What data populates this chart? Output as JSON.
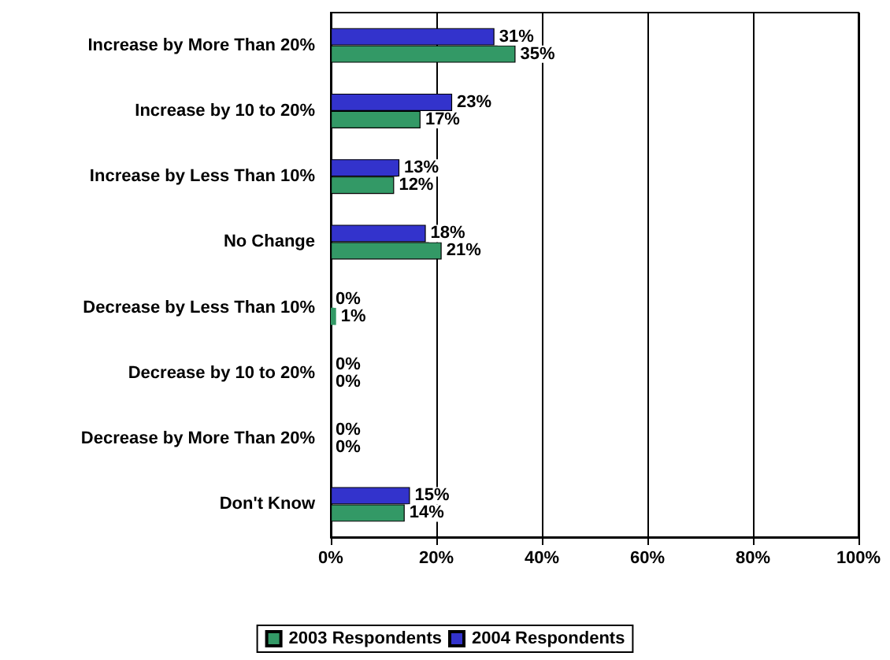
{
  "chart_data": {
    "type": "bar",
    "orientation": "horizontal",
    "categories": [
      "Increase by More Than 20%",
      "Increase by 10 to 20%",
      "Increase by Less Than 10%",
      "No Change",
      "Decrease by Less Than 10%",
      "Decrease by 10 to 20%",
      "Decrease by More Than 20%",
      "Don't Know"
    ],
    "series": [
      {
        "name": "2003 Respondents",
        "color": "#339966",
        "values": [
          35,
          17,
          12,
          21,
          1,
          0,
          0,
          14
        ],
        "value_labels": [
          "35%",
          "17%",
          "12%",
          "21%",
          "1%",
          "0%",
          "0%",
          "14%"
        ]
      },
      {
        "name": "2004 Respondents",
        "color": "#3333cc",
        "values": [
          31,
          23,
          13,
          18,
          0,
          0,
          0,
          15
        ],
        "value_labels": [
          "31%",
          "23%",
          "13%",
          "18%",
          "0%",
          "0%",
          "0%",
          "15%"
        ]
      }
    ],
    "xlim": [
      0,
      100
    ],
    "xticks": [
      {
        "value": 0,
        "label": "0%"
      },
      {
        "value": 20,
        "label": "20%"
      },
      {
        "value": 40,
        "label": "40%"
      },
      {
        "value": 60,
        "label": "60%"
      },
      {
        "value": 80,
        "label": "80%"
      },
      {
        "value": 100,
        "label": "100%"
      }
    ],
    "grid": "x",
    "legend": "bottom"
  }
}
